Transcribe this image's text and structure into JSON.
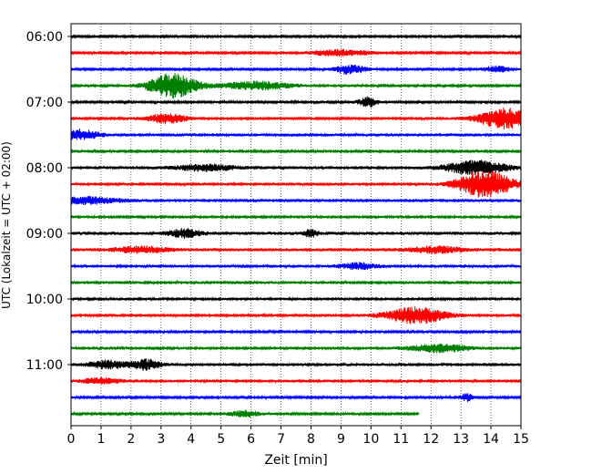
{
  "chart_data": {
    "type": "line",
    "xlabel": "Zeit  [min]",
    "ylabel": "UTC (Lokalzeit = UTC + 02:00)",
    "xlim": [
      0,
      15
    ],
    "x_ticks": [
      0,
      1,
      2,
      3,
      4,
      5,
      6,
      7,
      8,
      9,
      10,
      11,
      12,
      13,
      14,
      15
    ],
    "x_tick_labels": [
      "0",
      "1",
      "2",
      "3",
      "4",
      "5",
      "6",
      "7",
      "8",
      "9",
      "10",
      "11",
      "12",
      "13",
      "14",
      "15"
    ],
    "y_ticks": [
      {
        "label": "06:00",
        "trace_index": 0
      },
      {
        "label": "07:00",
        "trace_index": 4
      },
      {
        "label": "08:00",
        "trace_index": 8
      },
      {
        "label": "09:00",
        "trace_index": 12
      },
      {
        "label": "10:00",
        "trace_index": 16
      },
      {
        "label": "11:00",
        "trace_index": 20
      }
    ],
    "grid": "vertical dotted",
    "trace_interval_minutes": 15,
    "color_cycle": [
      "#000000",
      "#ff0000",
      "#0000ff",
      "#008000"
    ],
    "traces": [
      {
        "start": "06:00",
        "end_min": 15,
        "amp": 1.0,
        "events": []
      },
      {
        "start": "06:15",
        "end_min": 15,
        "amp": 1.1,
        "events": [
          {
            "t": 9.0,
            "a": 1.5,
            "w": 1.0
          }
        ]
      },
      {
        "start": "06:30",
        "end_min": 15,
        "amp": 1.0,
        "events": [
          {
            "t": 9.3,
            "a": 2.5,
            "w": 0.5
          },
          {
            "t": 14.2,
            "a": 1.5,
            "w": 0.5
          }
        ]
      },
      {
        "start": "06:45",
        "end_min": 15,
        "amp": 1.2,
        "events": [
          {
            "t": 3.4,
            "a": 6.0,
            "w": 0.8
          },
          {
            "t": 6.2,
            "a": 2.0,
            "w": 1.2
          }
        ]
      },
      {
        "start": "07:00",
        "end_min": 15,
        "amp": 1.2,
        "events": [
          {
            "t": 9.9,
            "a": 2.5,
            "w": 0.3
          }
        ]
      },
      {
        "start": "07:15",
        "end_min": 15,
        "amp": 1.3,
        "events": [
          {
            "t": 3.2,
            "a": 2.5,
            "w": 0.6
          },
          {
            "t": 14.5,
            "a": 5.0,
            "w": 0.9
          }
        ]
      },
      {
        "start": "07:30",
        "end_min": 15,
        "amp": 1.6,
        "events": [
          {
            "t": 0.3,
            "a": 2.5,
            "w": 0.6
          }
        ]
      },
      {
        "start": "07:45",
        "end_min": 15,
        "amp": 1.2,
        "events": []
      },
      {
        "start": "08:00",
        "end_min": 15,
        "amp": 1.5,
        "events": [
          {
            "t": 4.5,
            "a": 1.5,
            "w": 1.0
          },
          {
            "t": 13.5,
            "a": 3.5,
            "w": 1.0
          }
        ]
      },
      {
        "start": "08:15",
        "end_min": 15,
        "amp": 1.4,
        "events": [
          {
            "t": 13.8,
            "a": 6.5,
            "w": 0.9
          }
        ]
      },
      {
        "start": "08:30",
        "end_min": 15,
        "amp": 1.8,
        "events": [
          {
            "t": 0.5,
            "a": 1.5,
            "w": 1.0
          }
        ]
      },
      {
        "start": "08:45",
        "end_min": 15,
        "amp": 1.3,
        "events": []
      },
      {
        "start": "09:00",
        "end_min": 15,
        "amp": 1.7,
        "events": [
          {
            "t": 3.8,
            "a": 2.0,
            "w": 0.5
          },
          {
            "t": 8.0,
            "a": 2.0,
            "w": 0.2
          }
        ]
      },
      {
        "start": "09:15",
        "end_min": 15,
        "amp": 1.8,
        "events": [
          {
            "t": 2.3,
            "a": 1.5,
            "w": 0.8
          },
          {
            "t": 12.2,
            "a": 1.5,
            "w": 0.8
          }
        ]
      },
      {
        "start": "09:30",
        "end_min": 15,
        "amp": 1.5,
        "events": [
          {
            "t": 9.6,
            "a": 1.5,
            "w": 0.6
          }
        ]
      },
      {
        "start": "09:45",
        "end_min": 15,
        "amp": 1.4,
        "events": []
      },
      {
        "start": "10:00",
        "end_min": 15,
        "amp": 1.4,
        "events": []
      },
      {
        "start": "10:15",
        "end_min": 15,
        "amp": 1.3,
        "events": [
          {
            "t": 11.5,
            "a": 4.0,
            "w": 1.0
          }
        ]
      },
      {
        "start": "10:30",
        "end_min": 15,
        "amp": 1.2,
        "events": []
      },
      {
        "start": "10:45",
        "end_min": 15,
        "amp": 1.3,
        "events": [
          {
            "t": 12.3,
            "a": 2.0,
            "w": 1.0
          }
        ]
      },
      {
        "start": "11:00",
        "end_min": 15,
        "amp": 1.5,
        "events": [
          {
            "t": 1.2,
            "a": 2.0,
            "w": 0.6
          },
          {
            "t": 2.5,
            "a": 2.5,
            "w": 0.5
          }
        ]
      },
      {
        "start": "11:15",
        "end_min": 15,
        "amp": 1.4,
        "events": [
          {
            "t": 1.0,
            "a": 1.5,
            "w": 0.6
          }
        ]
      },
      {
        "start": "11:30",
        "end_min": 15,
        "amp": 1.1,
        "events": [
          {
            "t": 13.2,
            "a": 2.0,
            "w": 0.2
          }
        ]
      },
      {
        "start": "11:45",
        "end_min": 11.6,
        "amp": 1.2,
        "events": [
          {
            "t": 5.8,
            "a": 1.5,
            "w": 0.5
          }
        ]
      }
    ]
  }
}
